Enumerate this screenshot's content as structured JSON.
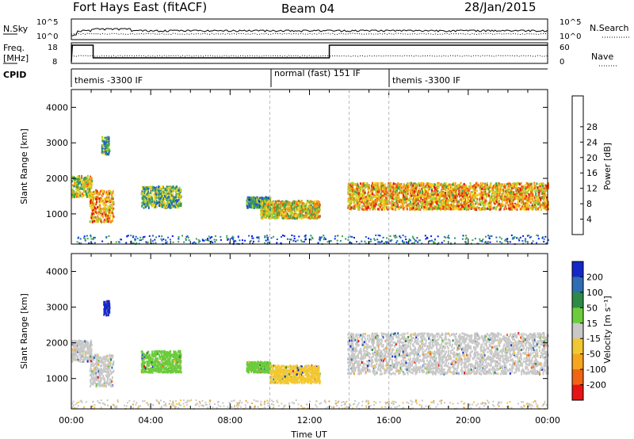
{
  "header": {
    "station": "Fort Hays East (fitACF)",
    "beam": "Beam 04",
    "date": "28/Jan/2015"
  },
  "strip_labels": {
    "nsky": "N.Sky",
    "nsearch": "N.Search",
    "freq_line1": "Freq.",
    "freq_line2": "[MHz]",
    "nave": "Nave",
    "cpid": "CPID",
    "nsky_ticks": [
      "10^5",
      "10^0"
    ],
    "nsearch_ticks": [
      "10^5",
      "10^0"
    ],
    "freq_ticks": [
      "18",
      "8"
    ],
    "nave_ticks": [
      "60",
      "0"
    ]
  },
  "cpid_segments": [
    {
      "label": "themis -3300 IF",
      "start_h": 0,
      "end_h": 10
    },
    {
      "label": "normal (fast) 151 IF",
      "start_h": 10,
      "end_h": 16
    },
    {
      "label": "themis -3300 IF",
      "start_h": 16,
      "end_h": 24
    }
  ],
  "chart_data": [
    {
      "type": "heatmap",
      "name": "power",
      "xlabel": "",
      "ylabel": "Slant Range [km]",
      "x_range_hours": [
        0,
        24
      ],
      "ylim": [
        150,
        4500
      ],
      "yticks": [
        1000,
        2000,
        3000,
        4000
      ],
      "colorbar": {
        "label": "Power [dB]",
        "ticks": [
          4,
          8,
          12,
          16,
          20,
          24,
          28
        ],
        "colors": [
          "#0018e8",
          "#1e5ad0",
          "#2e8a88",
          "#3aa34a",
          "#a4cf32",
          "#f2d21e",
          "#f59d18",
          "#ef5a12",
          "#e21410"
        ]
      },
      "echo_regions": [
        {
          "t0": 0.0,
          "t1": 1.0,
          "r0": 1500,
          "r1": 2100,
          "level": 0.55
        },
        {
          "t0": 0.9,
          "t1": 2.1,
          "r0": 800,
          "r1": 1700,
          "level": 0.75
        },
        {
          "t0": 1.5,
          "t1": 1.9,
          "r0": 2700,
          "r1": 3200,
          "level": 0.35
        },
        {
          "t0": 3.5,
          "t1": 5.5,
          "r0": 1200,
          "r1": 1800,
          "level": 0.4
        },
        {
          "t0": 8.8,
          "t1": 10.0,
          "r0": 1200,
          "r1": 1500,
          "level": 0.3
        },
        {
          "t0": 9.5,
          "t1": 12.5,
          "r0": 900,
          "r1": 1400,
          "level": 0.6
        },
        {
          "t0": 13.9,
          "t1": 24.0,
          "r0": 1150,
          "r1": 1900,
          "level": 0.7
        }
      ]
    },
    {
      "type": "heatmap",
      "name": "velocity",
      "xlabel": "Time UT",
      "ylabel": "Slant Range [km]",
      "x_range_hours": [
        0,
        24
      ],
      "xticks": [
        "00:00",
        "04:00",
        "08:00",
        "12:00",
        "16:00",
        "20:00",
        "00:00"
      ],
      "ylim": [
        150,
        4500
      ],
      "yticks": [
        1000,
        2000,
        3000,
        4000
      ],
      "colorbar": {
        "label": "Velocity [m s⁻¹]",
        "ticks": [
          200,
          100,
          50,
          15,
          -15,
          -50,
          -100,
          -200
        ],
        "colors": [
          "#1428c8",
          "#2e6eb4",
          "#2e8a46",
          "#6ccc3c",
          "#c8c8c8",
          "#f2c832",
          "#f5a51e",
          "#f06414",
          "#e61414"
        ]
      },
      "echo_regions": [
        {
          "t0": 0.0,
          "t1": 1.0,
          "r0": 1500,
          "r1": 2100,
          "color": "#c8c8c8"
        },
        {
          "t0": 0.9,
          "t1": 2.1,
          "r0": 800,
          "r1": 1700,
          "color": "#c8c8c8"
        },
        {
          "t0": 1.6,
          "t1": 1.9,
          "r0": 2800,
          "r1": 3200,
          "color": "#1428c8"
        },
        {
          "t0": 3.5,
          "t1": 5.5,
          "r0": 1200,
          "r1": 1800,
          "color": "#6ccc3c"
        },
        {
          "t0": 8.8,
          "t1": 10.0,
          "r0": 1200,
          "r1": 1500,
          "color": "#6ccc3c"
        },
        {
          "t0": 10.0,
          "t1": 12.5,
          "r0": 900,
          "r1": 1400,
          "color": "#f2c832"
        },
        {
          "t0": 13.9,
          "t1": 24.0,
          "r0": 1150,
          "r1": 2300,
          "color": "#c8c8c8"
        }
      ]
    }
  ]
}
